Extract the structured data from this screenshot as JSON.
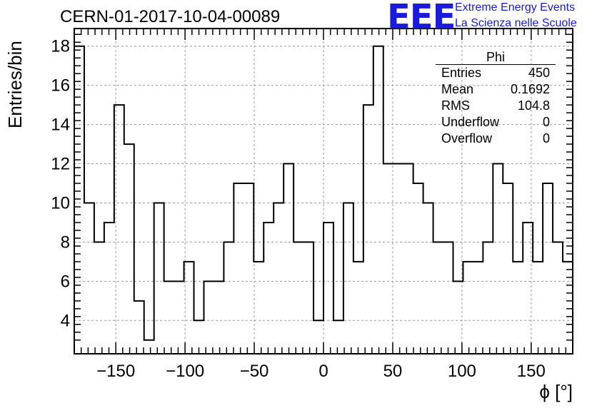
{
  "title": "CERN-01-2017-10-04-00089",
  "logo": {
    "mark": "EEE",
    "line1": "Extreme Energy Events",
    "line2": "La Scienza nelle Scuole"
  },
  "colors": {
    "logo": "#1a1adc",
    "line": "#000000",
    "grid": "#9a9a9a"
  },
  "stats": {
    "name": "Phi",
    "rows": [
      {
        "label": "Entries",
        "value": "450"
      },
      {
        "label": "Mean",
        "value": "0.1692"
      },
      {
        "label": "RMS",
        "value": "104.8"
      },
      {
        "label": "Underflow",
        "value": "0"
      },
      {
        "label": "Overflow",
        "value": "0"
      }
    ]
  },
  "chart_data": {
    "type": "histogram",
    "xlabel": "ϕ [°]",
    "ylabel": "Entries/bin",
    "xlim": [
      -180,
      180
    ],
    "ylim": [
      2.3,
      18.9
    ],
    "grid": true,
    "bin_edges": [
      -180,
      -172.8,
      -165.6,
      -158.4,
      -151.2,
      -144,
      -136.8,
      -129.6,
      -122.4,
      -115.2,
      -108,
      -100.8,
      -93.6,
      -86.4,
      -79.2,
      -72,
      -64.8,
      -57.6,
      -50.4,
      -43.2,
      -36,
      -28.8,
      -21.6,
      -14.4,
      -7.2,
      0,
      7.2,
      14.4,
      21.6,
      28.8,
      36,
      43.2,
      50.4,
      57.6,
      64.8,
      72,
      79.2,
      86.4,
      93.6,
      100.8,
      108,
      115.2,
      122.4,
      129.6,
      136.8,
      144,
      151.2,
      158.4,
      165.6,
      172.8,
      180
    ],
    "values": [
      18,
      10,
      8,
      9,
      15,
      13,
      5,
      3,
      10,
      6,
      6,
      7,
      4,
      6,
      6,
      8,
      11,
      11,
      7,
      9,
      10,
      12,
      8,
      8,
      4,
      9,
      4,
      10,
      7,
      15,
      18,
      12,
      12,
      12,
      11,
      10,
      8,
      8,
      6,
      7,
      7,
      8,
      12,
      11,
      7,
      9,
      7,
      11,
      8,
      7
    ],
    "x_ticks": [
      -150,
      -100,
      -50,
      0,
      50,
      100,
      150
    ],
    "x_tick_labels": [
      "−150",
      "−100",
      "−50",
      "0",
      "50",
      "100",
      "150"
    ],
    "y_ticks": [
      4,
      6,
      8,
      10,
      12,
      14,
      16,
      18
    ],
    "y_tick_labels": [
      "4",
      "6",
      "8",
      "10",
      "12",
      "14",
      "16",
      "18"
    ]
  }
}
